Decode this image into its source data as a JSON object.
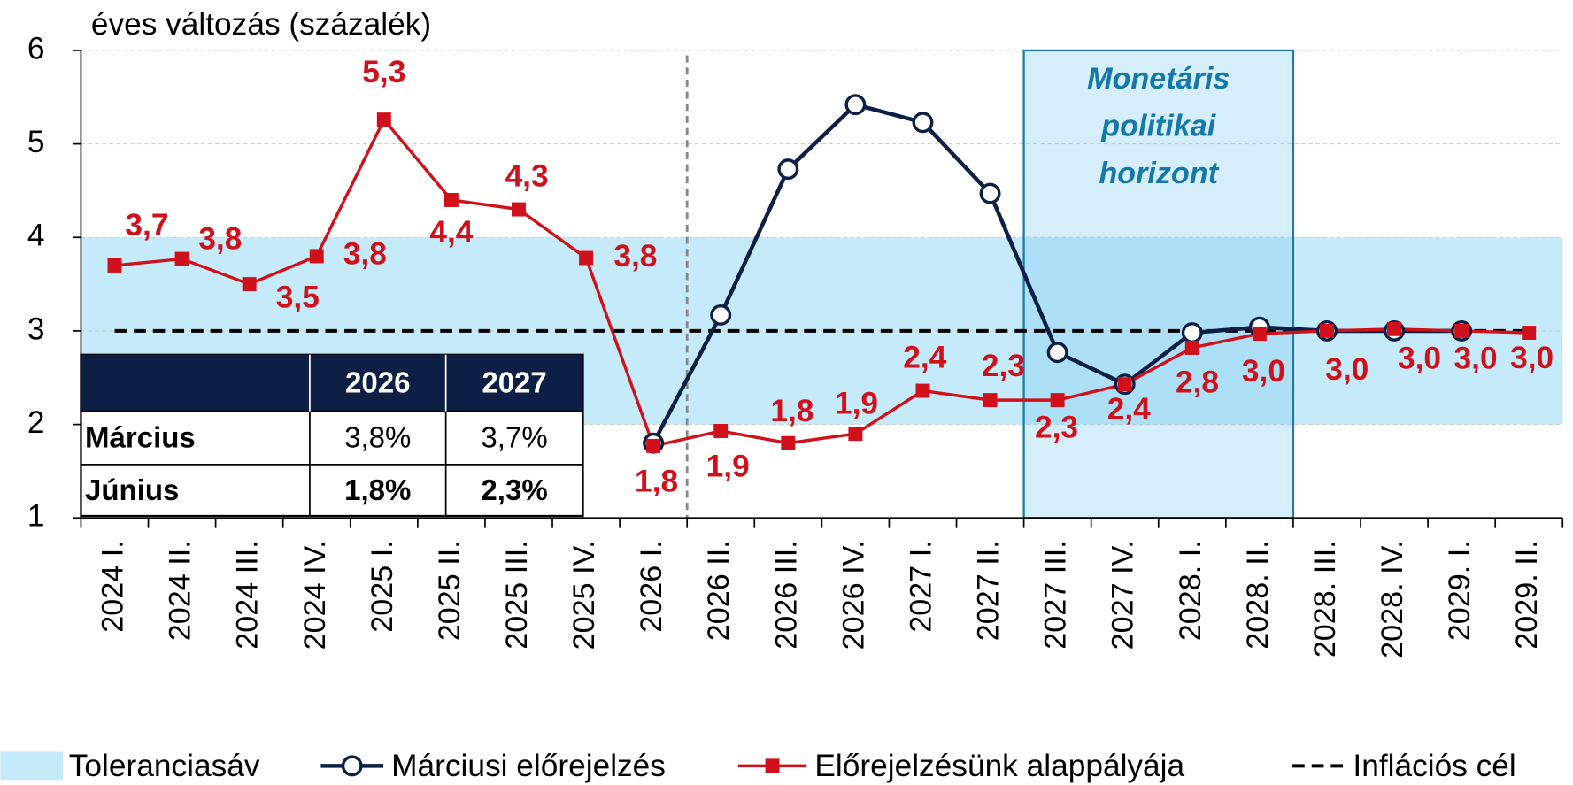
{
  "chart_data": {
    "type": "line",
    "y_axis_label": "éves változás (százalék)",
    "categories": [
      "2024 I.",
      "2024 II.",
      "2024 III.",
      "2024 IV.",
      "2025 I.",
      "2025 II.",
      "2025 III.",
      "2025 IV.",
      "2026 I.",
      "2026 II.",
      "2026 III.",
      "2026 IV.",
      "2027 I.",
      "2027 II.",
      "2027 III.",
      "2027 IV.",
      "2028. I.",
      "2028. II.",
      "2028. III.",
      "2028. IV.",
      "2029. I.",
      "2029. II."
    ],
    "series": [
      {
        "name": "Márciusi előrejelzés",
        "color": "#0d1f45",
        "values": [
          null,
          null,
          null,
          null,
          null,
          null,
          null,
          null,
          1.8,
          3.17,
          4.73,
          5.42,
          5.23,
          4.47,
          2.77,
          2.43,
          2.98,
          3.04,
          3.0,
          3.0,
          3.0,
          null
        ]
      },
      {
        "name": "Előrejelzésünk alappályája",
        "color": "#d0101a",
        "values": [
          3.7,
          3.77,
          3.5,
          3.8,
          5.26,
          4.4,
          4.3,
          3.78,
          1.77,
          1.93,
          1.8,
          1.9,
          2.36,
          2.26,
          2.26,
          2.43,
          2.82,
          2.97,
          3.0,
          3.02,
          3.0,
          2.98
        ],
        "value_labels": [
          "3,7",
          "3,8",
          "3,5",
          "3,8",
          "5,3",
          "4,4",
          "4,3",
          "3,8",
          "1,8",
          "1,9",
          "1,8",
          "1,9",
          "2,4",
          "2,3",
          "2,3",
          "2,4",
          "2,8",
          "3,0",
          "3,0",
          "3,0",
          "3,0",
          "3,0"
        ]
      }
    ],
    "band": {
      "name": "Toleranciasáv",
      "range": [
        2,
        4
      ],
      "color": "#c5ebfa"
    },
    "target": {
      "name": "Inflációs cél",
      "value": 3,
      "color": "#000000"
    },
    "horizon_label": "Monetáris politikai horizont",
    "ylim": [
      1,
      6
    ],
    "yticks": [
      1,
      2,
      3,
      4,
      5,
      6
    ],
    "grid": true
  },
  "table": {
    "header": [
      "",
      "2026",
      "2027"
    ],
    "rows": [
      [
        "Március",
        "3,8%",
        "3,7%"
      ],
      [
        "Június",
        "1,8%",
        "2,3%"
      ]
    ]
  }
}
